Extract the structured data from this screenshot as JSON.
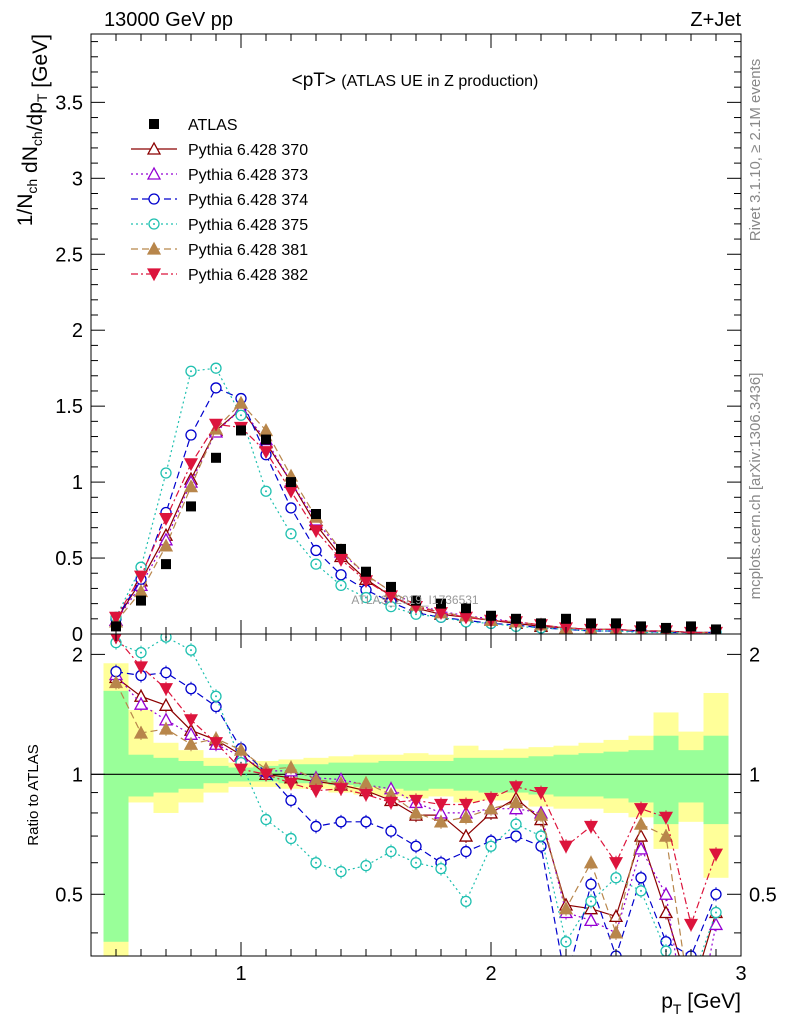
{
  "header": {
    "energy_label": "13000 GeV pp",
    "process_label": "Z+Jet"
  },
  "side_labels": {
    "rivet": "Rivet 3.1.10, ≥ 2.1M events",
    "mcplots": "mcplots.cern.ch [arXiv:1306.3436]"
  },
  "watermark": "ATLAS_2019_I1736531",
  "chart_data": [
    {
      "type": "line",
      "title": "<pT> (ATLAS UE in Z production)",
      "title_main": "<pT>",
      "title_sub": "(ATLAS UE in Z production)",
      "xlabel": "p_T [GeV]",
      "ylabel": "1/N_ch dN_ch/dp_T [GeV]",
      "xlim": [
        0.4,
        3.0
      ],
      "ylim": [
        0,
        3.95
      ],
      "x_ticks": [
        "1",
        "2",
        "3"
      ],
      "y_ticks": [
        "0",
        "0.5",
        "1",
        "1.5",
        "2",
        "2.5",
        "3",
        "3.5"
      ],
      "legend_position": "top-left",
      "x": [
        0.5,
        0.6,
        0.7,
        0.8,
        0.9,
        1.0,
        1.1,
        1.2,
        1.3,
        1.4,
        1.5,
        1.6,
        1.7,
        1.8,
        1.9,
        2.0,
        2.1,
        2.2,
        2.3,
        2.4,
        2.5,
        2.6,
        2.7,
        2.8,
        2.9
      ],
      "series": [
        {
          "name": "ATLAS",
          "color": "#000000",
          "marker": "square-filled",
          "line": "none",
          "values": [
            0.05,
            0.22,
            0.46,
            0.84,
            1.16,
            1.34,
            1.28,
            1.0,
            0.79,
            0.56,
            0.41,
            0.31,
            0.22,
            0.2,
            0.17,
            0.12,
            0.1,
            0.07,
            0.1,
            0.07,
            0.07,
            0.05,
            0.04,
            0.05,
            0.03
          ]
        },
        {
          "name": "Pythia 6.428 370",
          "color": "#8b0000",
          "marker": "triangle-up-open",
          "line": "solid",
          "values": [
            0.09,
            0.35,
            0.65,
            1.02,
            1.34,
            1.48,
            1.26,
            1.0,
            0.72,
            0.51,
            0.36,
            0.25,
            0.17,
            0.13,
            0.11,
            0.09,
            0.07,
            0.05,
            0.04,
            0.03,
            0.03,
            0.02,
            0.02,
            0.01,
            0.01
          ]
        },
        {
          "name": "Pythia 6.428 373",
          "color": "#9400d3",
          "marker": "triangle-up-open",
          "line": "dotted",
          "values": [
            0.09,
            0.32,
            0.62,
            1.0,
            1.33,
            1.48,
            1.28,
            1.0,
            0.75,
            0.54,
            0.39,
            0.28,
            0.19,
            0.15,
            0.12,
            0.1,
            0.08,
            0.06,
            0.04,
            0.03,
            0.03,
            0.02,
            0.02,
            0.01,
            0.01
          ]
        },
        {
          "name": "Pythia 6.428 374",
          "color": "#0000cd",
          "marker": "circle-open",
          "line": "dashed",
          "values": [
            0.1,
            0.36,
            0.8,
            1.31,
            1.62,
            1.55,
            1.18,
            0.83,
            0.55,
            0.39,
            0.29,
            0.21,
            0.14,
            0.11,
            0.09,
            0.07,
            0.06,
            0.04,
            0.03,
            0.02,
            0.02,
            0.02,
            0.01,
            0.01,
            0.01
          ]
        },
        {
          "name": "Pythia 6.428 375",
          "color": "#20c0b0",
          "marker": "dotted-circle-open",
          "line": "dotted",
          "values": [
            0.11,
            0.44,
            1.06,
            1.73,
            1.75,
            1.44,
            0.94,
            0.66,
            0.46,
            0.32,
            0.24,
            0.18,
            0.13,
            0.11,
            0.08,
            0.07,
            0.05,
            0.04,
            0.03,
            0.02,
            0.02,
            0.01,
            0.01,
            0.01,
            0.01
          ]
        },
        {
          "name": "Pythia 6.428 381",
          "color": "#b8864b",
          "marker": "triangle-up-filled",
          "line": "dashed",
          "values": [
            0.08,
            0.28,
            0.58,
            0.97,
            1.35,
            1.52,
            1.34,
            1.04,
            0.77,
            0.55,
            0.39,
            0.28,
            0.19,
            0.14,
            0.12,
            0.09,
            0.08,
            0.06,
            0.04,
            0.03,
            0.03,
            0.02,
            0.02,
            0.01,
            0.01
          ]
        },
        {
          "name": "Pythia 6.428 382",
          "color": "#dc143c",
          "marker": "triangle-down-filled",
          "line": "dashdot",
          "values": [
            0.11,
            0.38,
            0.76,
            1.12,
            1.38,
            1.36,
            1.2,
            0.94,
            0.68,
            0.49,
            0.35,
            0.25,
            0.18,
            0.14,
            0.11,
            0.09,
            0.08,
            0.06,
            0.04,
            0.03,
            0.03,
            0.02,
            0.02,
            0.01,
            0.01
          ]
        }
      ]
    },
    {
      "type": "line",
      "title": "",
      "xlabel": "p_T [GeV]",
      "ylabel": "Ratio to ATLAS",
      "xlim": [
        0.4,
        3.0
      ],
      "ylim": [
        0.35,
        2.25
      ],
      "x_ticks": [
        "1",
        "2",
        "3"
      ],
      "y_ticks": [
        "0.5",
        "1",
        "2"
      ],
      "reference_line": 1,
      "x": [
        0.5,
        0.6,
        0.7,
        0.8,
        0.9,
        1.0,
        1.1,
        1.2,
        1.3,
        1.4,
        1.5,
        1.6,
        1.7,
        1.8,
        1.9,
        2.0,
        2.1,
        2.2,
        2.3,
        2.4,
        2.5,
        2.6,
        2.7,
        2.8,
        2.9
      ],
      "bands": {
        "inner_color": "#99ff99",
        "outer_color": "#ffff99",
        "inner": [
          [
            0.38,
            1.62
          ],
          [
            0.88,
            1.12
          ],
          [
            0.9,
            1.1
          ],
          [
            0.92,
            1.08
          ],
          [
            0.95,
            1.05
          ],
          [
            0.96,
            1.04
          ],
          [
            0.96,
            1.05
          ],
          [
            0.95,
            1.06
          ],
          [
            0.95,
            1.06
          ],
          [
            0.94,
            1.07
          ],
          [
            0.93,
            1.07
          ],
          [
            0.92,
            1.08
          ],
          [
            0.91,
            1.08
          ],
          [
            0.92,
            1.08
          ],
          [
            0.91,
            1.1
          ],
          [
            0.9,
            1.1
          ],
          [
            0.9,
            1.1
          ],
          [
            0.89,
            1.11
          ],
          [
            0.88,
            1.12
          ],
          [
            0.88,
            1.13
          ],
          [
            0.87,
            1.14
          ],
          [
            0.85,
            1.15
          ],
          [
            0.75,
            1.25
          ],
          [
            0.85,
            1.15
          ],
          [
            0.75,
            1.25
          ]
        ],
        "outer": [
          [
            0.35,
            1.9
          ],
          [
            0.85,
            1.45
          ],
          [
            0.8,
            1.2
          ],
          [
            0.85,
            1.15
          ],
          [
            0.9,
            1.1
          ],
          [
            0.93,
            1.07
          ],
          [
            0.93,
            1.08
          ],
          [
            0.92,
            1.09
          ],
          [
            0.92,
            1.1
          ],
          [
            0.9,
            1.11
          ],
          [
            0.89,
            1.12
          ],
          [
            0.88,
            1.12
          ],
          [
            0.87,
            1.13
          ],
          [
            0.88,
            1.12
          ],
          [
            0.85,
            1.18
          ],
          [
            0.86,
            1.15
          ],
          [
            0.86,
            1.16
          ],
          [
            0.83,
            1.17
          ],
          [
            0.82,
            1.18
          ],
          [
            0.82,
            1.2
          ],
          [
            0.8,
            1.22
          ],
          [
            0.78,
            1.25
          ],
          [
            0.65,
            1.43
          ],
          [
            0.76,
            1.28
          ],
          [
            0.55,
            1.6
          ]
        ]
      },
      "series": [
        {
          "name": "Pythia 6.428 370",
          "values": [
            1.75,
            1.57,
            1.49,
            1.29,
            1.22,
            1.12,
            1.0,
            0.98,
            0.96,
            0.94,
            0.91,
            0.86,
            0.79,
            0.79,
            0.7,
            0.8,
            0.87,
            0.77,
            0.47,
            0.46,
            0.44,
            0.7,
            0.45,
            0.28,
            0.45
          ]
        },
        {
          "name": "Pythia 6.428 373",
          "values": [
            1.78,
            1.5,
            1.37,
            1.26,
            1.19,
            1.11,
            1.02,
            1.02,
            0.98,
            0.97,
            0.94,
            0.92,
            0.85,
            0.8,
            0.8,
            0.82,
            0.82,
            0.8,
            0.45,
            0.43,
            0.4,
            0.65,
            0.5,
            0.2,
            0.42
          ]
        },
        {
          "name": "Pythia 6.428 374",
          "values": [
            1.81,
            1.77,
            1.8,
            1.64,
            1.48,
            1.16,
            1.01,
            0.86,
            0.74,
            0.76,
            0.76,
            0.72,
            0.66,
            0.6,
            0.64,
            0.68,
            0.7,
            0.66,
            0.3,
            0.53,
            0.35,
            0.55,
            0.38,
            0.35,
            0.5
          ]
        },
        {
          "name": "Pythia 6.428 375",
          "values": [
            2.14,
            2.02,
            2.21,
            2.05,
            1.57,
            1.07,
            0.77,
            0.69,
            0.6,
            0.57,
            0.59,
            0.64,
            0.6,
            0.58,
            0.48,
            0.66,
            0.75,
            0.7,
            0.38,
            0.48,
            0.55,
            0.51,
            0.36,
            0.3,
            0.45
          ]
        },
        {
          "name": "Pythia 6.428 381",
          "values": [
            1.7,
            1.27,
            1.3,
            1.19,
            1.23,
            1.15,
            1.03,
            1.04,
            0.97,
            0.95,
            0.95,
            0.89,
            0.8,
            0.76,
            0.78,
            0.82,
            0.85,
            0.79,
            0.46,
            0.6,
            0.4,
            0.75,
            0.7,
            0.26,
            0.3
          ]
        },
        {
          "name": "Pythia 6.428 382",
          "values": [
            2.21,
            1.86,
            1.64,
            1.37,
            1.2,
            1.03,
            1.0,
            0.95,
            0.91,
            0.92,
            0.89,
            0.85,
            0.86,
            0.84,
            0.84,
            0.87,
            0.93,
            0.9,
            0.66,
            0.74,
            0.6,
            0.82,
            0.78,
            0.42,
            0.63
          ]
        }
      ]
    }
  ]
}
